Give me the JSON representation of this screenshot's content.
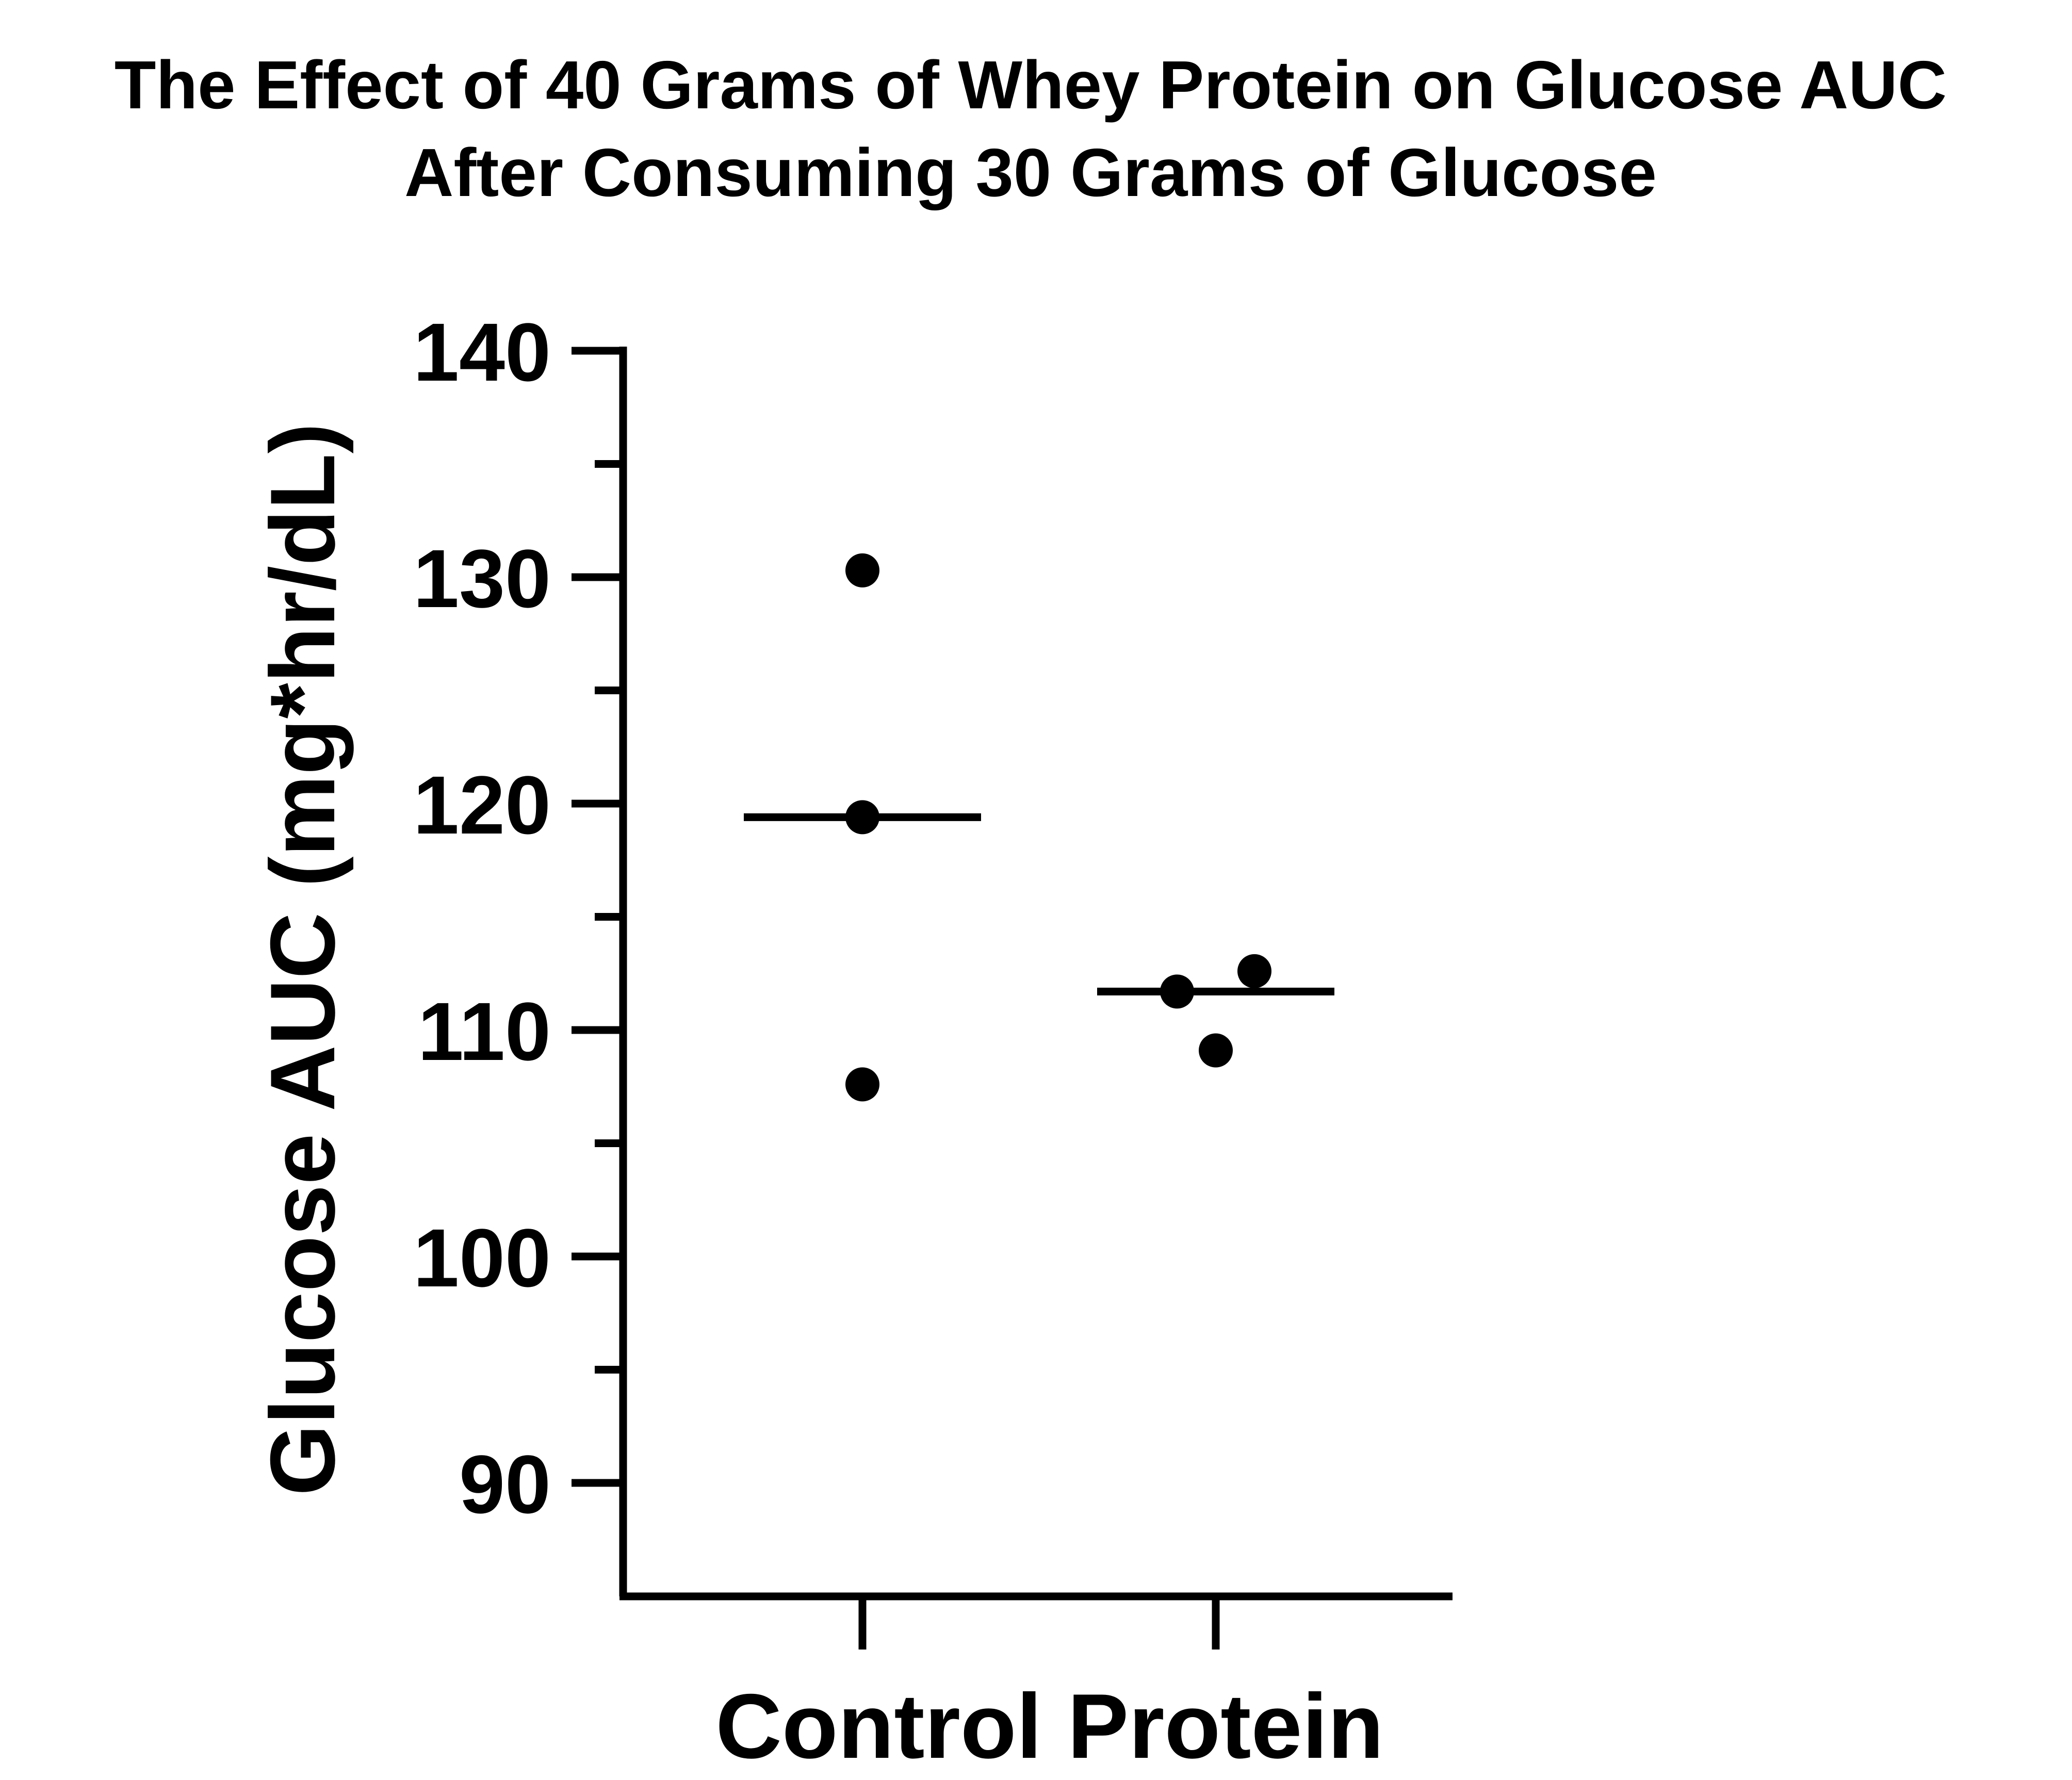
{
  "chart_data": {
    "type": "scatter",
    "title_lines": [
      "The Effect of 40 Grams of Whey Protein on Glucose AUC",
      "After Consuming 30 Grams of Glucose"
    ],
    "ylabel": "Glucose AUC (mg*hr/dL)",
    "xlabel": "Control Protein",
    "categories": [
      "Control",
      "Protein"
    ],
    "ylim": [
      85,
      140
    ],
    "yticks_major": [
      90,
      100,
      110,
      120,
      130,
      140
    ],
    "yticks_major_labels": [
      "90",
      "100",
      "110",
      "120",
      "130",
      "140"
    ],
    "yticks_minor": [
      95,
      105,
      115,
      125,
      135
    ],
    "grid": false,
    "legend": "none",
    "groups": [
      {
        "category": "Control",
        "points": [
          130.3,
          119.4,
          107.6
        ],
        "median": 119.4
      },
      {
        "category": "Protein",
        "points": [
          112.6,
          111.7,
          109.1
        ],
        "median": 111.7
      }
    ]
  }
}
